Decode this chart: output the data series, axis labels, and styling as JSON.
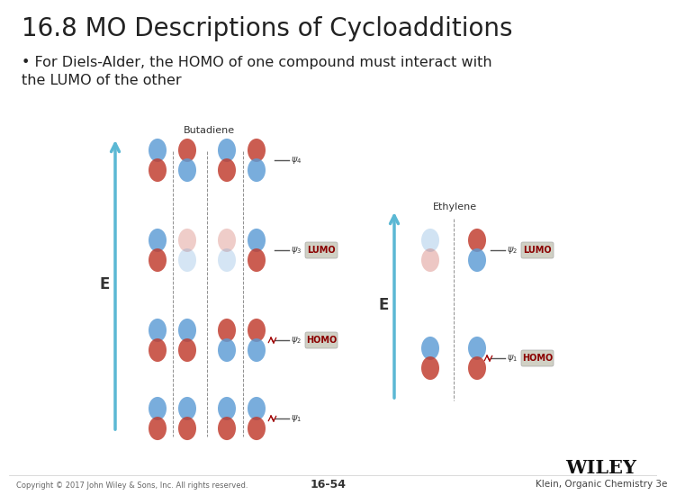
{
  "title": "16.8 MO Descriptions of Cycloadditions",
  "bullet": "For Diels-Alder, the HOMO of one compound must interact with\nthe LUMO of the other",
  "bg_color": "#ffffff",
  "title_color": "#222222",
  "title_fontsize": 20,
  "bullet_fontsize": 11.5,
  "footer_left": "Copyright © 2017 John Wiley & Sons, Inc. All rights reserved.",
  "footer_center": "16-54",
  "footer_right": "Klein, Organic Chemistry 3e",
  "wiley_text": "WILEY",
  "blue_color": "#5b9bd5",
  "red_color": "#c0392b",
  "lumo_bg": "#d0d0c4",
  "homo_bg": "#d0d0c4",
  "label_color": "#8B0000",
  "arrow_color": "#5bb8d4",
  "dashed_color": "#555555"
}
